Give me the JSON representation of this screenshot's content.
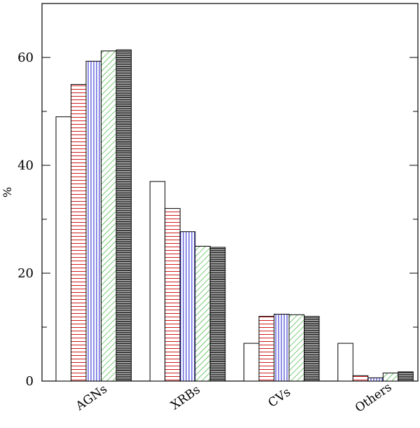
{
  "chart_data": {
    "type": "bar",
    "ylabel": "%",
    "ylim": [
      0,
      70
    ],
    "yticks": [
      0,
      20,
      40,
      60
    ],
    "y_minor_step": 10,
    "categories": [
      "AGNs",
      "XRBs",
      "CVs",
      "Others"
    ],
    "series": [
      {
        "values": [
          49.0,
          37.0,
          7.0,
          7.0
        ],
        "pattern": "none",
        "color": "#000000"
      },
      {
        "values": [
          55.0,
          32.0,
          12.0,
          1.0
        ],
        "pattern": "horizontal",
        "color": "#d21e1e"
      },
      {
        "values": [
          59.3,
          27.7,
          12.4,
          0.6
        ],
        "pattern": "vertical",
        "color": "#1e1ed2"
      },
      {
        "values": [
          61.2,
          25.0,
          12.3,
          1.5
        ],
        "pattern": "diagonal",
        "color": "#1ea51e"
      },
      {
        "values": [
          61.4,
          24.8,
          12.0,
          1.7
        ],
        "pattern": "dense-horizontal",
        "color": "#000000"
      }
    ],
    "grid": false,
    "legend": "none"
  }
}
